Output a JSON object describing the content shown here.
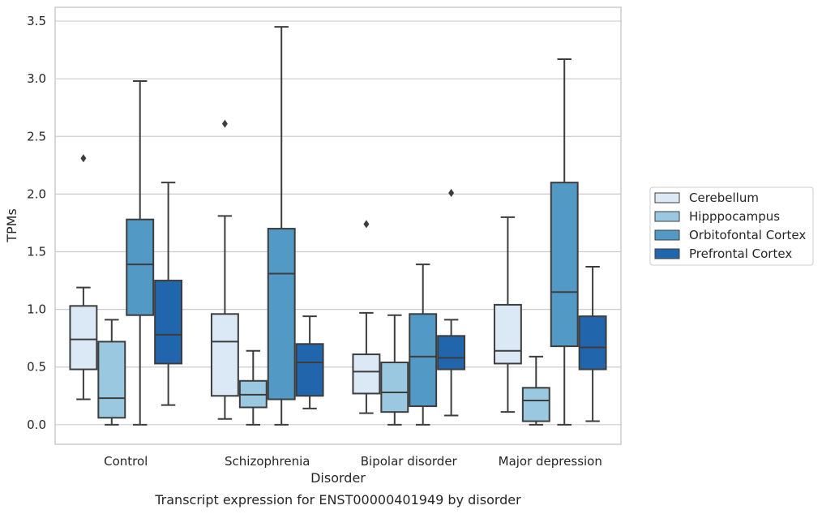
{
  "caption": "Transcript expression for ENST00000401949 by disorder",
  "chart_data": {
    "type": "boxplot",
    "xlabel": "Disorder",
    "ylabel": "TPMs",
    "ylim": [
      -0.17,
      3.62
    ],
    "yticks": [
      "0.0",
      "0.5",
      "1.0",
      "1.5",
      "2.0",
      "2.5",
      "3.0",
      "3.5"
    ],
    "grid": "horizontal",
    "legend_position": "right",
    "categories": [
      "Control",
      "Schizophrenia",
      "Bipolar disorder",
      "Major depression"
    ],
    "series": [
      {
        "name": "Cerebellum",
        "color": "#dbe9f6",
        "boxes": [
          {
            "min": 0.22,
            "q1": 0.48,
            "median": 0.74,
            "q3": 1.03,
            "max": 1.19,
            "outliers": [
              2.31
            ]
          },
          {
            "min": 0.05,
            "q1": 0.25,
            "median": 0.72,
            "q3": 0.96,
            "max": 1.81,
            "outliers": [
              2.61
            ]
          },
          {
            "min": 0.1,
            "q1": 0.27,
            "median": 0.46,
            "q3": 0.61,
            "max": 0.97,
            "outliers": [
              1.74
            ]
          },
          {
            "min": 0.11,
            "q1": 0.53,
            "median": 0.64,
            "q3": 1.04,
            "max": 1.8,
            "outliers": []
          }
        ]
      },
      {
        "name": "Hipppocampus",
        "color": "#9ac8e0",
        "boxes": [
          {
            "min": 0.0,
            "q1": 0.06,
            "median": 0.23,
            "q3": 0.72,
            "max": 0.91,
            "outliers": []
          },
          {
            "min": 0.0,
            "q1": 0.15,
            "median": 0.26,
            "q3": 0.38,
            "max": 0.64,
            "outliers": []
          },
          {
            "min": 0.0,
            "q1": 0.11,
            "median": 0.28,
            "q3": 0.54,
            "max": 0.95,
            "outliers": []
          },
          {
            "min": 0.0,
            "q1": 0.03,
            "median": 0.21,
            "q3": 0.32,
            "max": 0.59,
            "outliers": []
          }
        ]
      },
      {
        "name": "Orbitofontal Cortex",
        "color": "#5299c6",
        "boxes": [
          {
            "min": 0.0,
            "q1": 0.95,
            "median": 1.39,
            "q3": 1.78,
            "max": 2.98,
            "outliers": []
          },
          {
            "min": 0.0,
            "q1": 0.22,
            "median": 1.31,
            "q3": 1.7,
            "max": 3.45,
            "outliers": []
          },
          {
            "min": 0.0,
            "q1": 0.16,
            "median": 0.59,
            "q3": 0.96,
            "max": 1.39,
            "outliers": []
          },
          {
            "min": 0.0,
            "q1": 0.68,
            "median": 1.15,
            "q3": 2.1,
            "max": 3.17,
            "outliers": []
          }
        ]
      },
      {
        "name": "Prefrontal Cortex",
        "color": "#2166ac",
        "boxes": [
          {
            "min": 0.17,
            "q1": 0.53,
            "median": 0.78,
            "q3": 1.25,
            "max": 2.1,
            "outliers": []
          },
          {
            "min": 0.14,
            "q1": 0.25,
            "median": 0.54,
            "q3": 0.7,
            "max": 0.94,
            "outliers": []
          },
          {
            "min": 0.08,
            "q1": 0.48,
            "median": 0.58,
            "q3": 0.77,
            "max": 0.91,
            "outliers": [
              2.01
            ]
          },
          {
            "min": 0.03,
            "q1": 0.48,
            "median": 0.67,
            "q3": 0.94,
            "max": 1.37,
            "outliers": []
          }
        ]
      }
    ]
  }
}
